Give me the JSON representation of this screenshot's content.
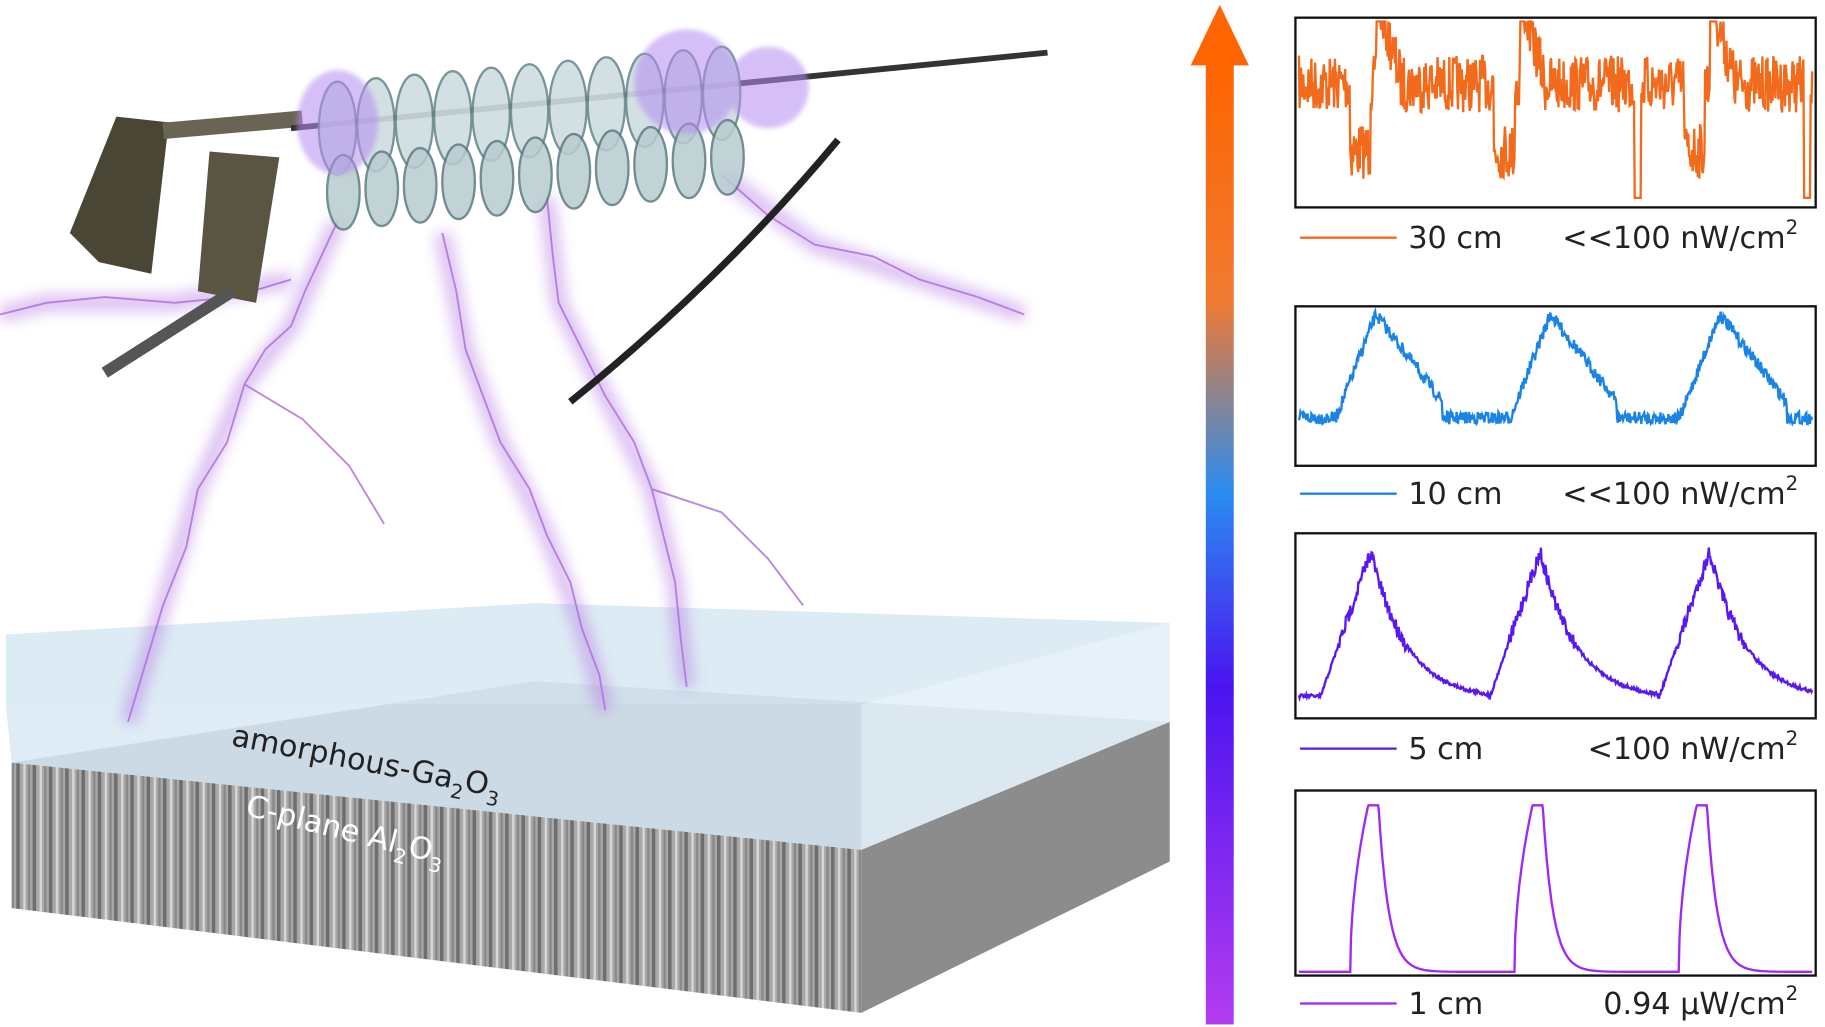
{
  "illustration": {
    "top_layer": [
      "amorphous-Ga",
      "2",
      "O",
      "3"
    ],
    "bottom_layer": [
      "C-plane Al",
      "2",
      "O",
      "3"
    ]
  },
  "panels": [
    {
      "distance": "30 cm",
      "intensity": "<<100 nW/cm",
      "intensity_sup": "2",
      "color": "#f26a1b"
    },
    {
      "distance": "10 cm",
      "intensity": "<<100 nW/cm",
      "intensity_sup": "2",
      "color": "#1a84e6"
    },
    {
      "distance": "5 cm",
      "intensity": "<100 nW/cm",
      "intensity_sup": "2",
      "color": "#5a18f0"
    },
    {
      "distance": "1 cm",
      "intensity": "0.94 μW/cm",
      "intensity_sup": "2",
      "color": "#a028f0"
    }
  ]
}
